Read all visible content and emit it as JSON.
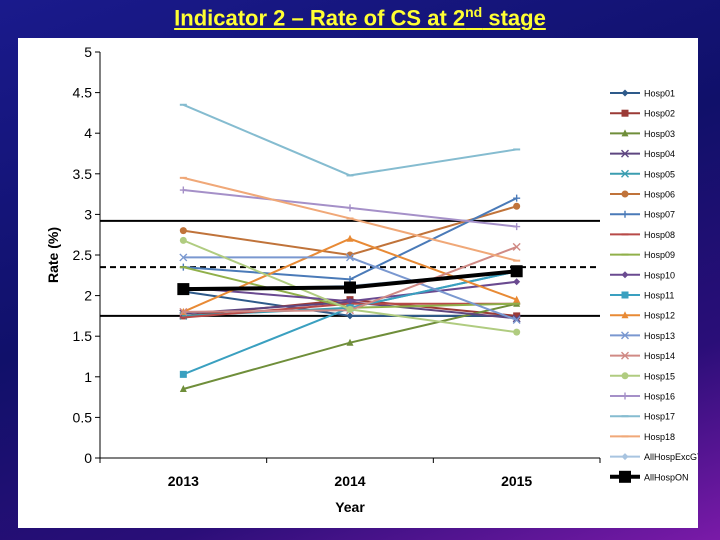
{
  "slide": {
    "title_main": "Indicator 2 – Rate of CS at 2",
    "title_sup": "nd",
    "title_end": " stage"
  },
  "chart_data": {
    "type": "line",
    "xlabel": "Year",
    "ylabel": "Rate (%)",
    "ylim": [
      0,
      5
    ],
    "yticks": [
      "0",
      "0.5",
      "1",
      "1.5",
      "2",
      "2.5",
      "3",
      "3.5",
      "4",
      "4.5",
      "5"
    ],
    "categories": [
      "2013",
      "2014",
      "2015"
    ],
    "legend_position": "right",
    "reference_lines": [
      {
        "style": "solid",
        "value": 2.92
      },
      {
        "style": "dashed",
        "value": 2.35
      },
      {
        "style": "solid",
        "value": 1.75
      }
    ],
    "series": [
      {
        "name": "Hosp01",
        "color": "#2e5a8a",
        "marker": "diamond",
        "values": [
          2.05,
          1.75,
          1.75
        ]
      },
      {
        "name": "Hosp02",
        "color": "#9b3a36",
        "marker": "square",
        "values": [
          1.75,
          1.95,
          1.75
        ]
      },
      {
        "name": "Hosp03",
        "color": "#6f8e3a",
        "marker": "triangle",
        "values": [
          0.85,
          1.42,
          1.9
        ]
      },
      {
        "name": "Hosp04",
        "color": "#5e4680",
        "marker": "x",
        "values": [
          1.78,
          1.92,
          1.72
        ]
      },
      {
        "name": "Hosp05",
        "color": "#3b9db0",
        "marker": "x",
        "values": [
          1.75,
          1.85,
          2.3
        ]
      },
      {
        "name": "Hosp06",
        "color": "#c0733a",
        "marker": "circle",
        "values": [
          2.8,
          2.5,
          3.1
        ]
      },
      {
        "name": "Hosp07",
        "color": "#4a7ab8",
        "marker": "plus",
        "values": [
          2.35,
          2.2,
          3.2
        ]
      },
      {
        "name": "Hosp08",
        "color": "#b84a48",
        "marker": "dash",
        "values": [
          1.73,
          1.9,
          1.9
        ]
      },
      {
        "name": "Hosp09",
        "color": "#90b04a",
        "marker": "dash",
        "values": [
          2.35,
          1.85,
          1.9
        ]
      },
      {
        "name": "Hosp10",
        "color": "#6a4a90",
        "marker": "diamond",
        "values": [
          2.1,
          1.93,
          2.17
        ]
      },
      {
        "name": "Hosp11",
        "color": "#3aa0c0",
        "marker": "square",
        "values": [
          1.03,
          1.85,
          2.3
        ]
      },
      {
        "name": "Hosp12",
        "color": "#e88a35",
        "marker": "triangle",
        "values": [
          1.8,
          2.7,
          1.95
        ]
      },
      {
        "name": "Hosp13",
        "color": "#7a98d0",
        "marker": "x",
        "values": [
          2.47,
          2.47,
          1.7
        ]
      },
      {
        "name": "Hosp14",
        "color": "#d08a85",
        "marker": "x",
        "values": [
          1.8,
          1.82,
          2.6
        ]
      },
      {
        "name": "Hosp15",
        "color": "#b0cc80",
        "marker": "circle",
        "values": [
          2.68,
          1.83,
          1.55
        ]
      },
      {
        "name": "Hosp16",
        "color": "#a590c8",
        "marker": "plus",
        "values": [
          3.3,
          3.08,
          2.85
        ]
      },
      {
        "name": "Hosp17",
        "color": "#85bcd0",
        "marker": "dash",
        "values": [
          4.35,
          3.48,
          3.8
        ]
      },
      {
        "name": "Hosp18",
        "color": "#f0a878",
        "marker": "dash",
        "values": [
          3.45,
          2.95,
          2.43
        ]
      },
      {
        "name": "AllHospExcGTA",
        "color": "#a8c4e0",
        "marker": "diamond",
        "values": [
          2.07,
          2.12,
          2.3
        ]
      },
      {
        "name": "AllHospON",
        "color": "#000000",
        "marker": "bigsquare",
        "values": [
          2.08,
          2.1,
          2.3
        ]
      }
    ]
  }
}
